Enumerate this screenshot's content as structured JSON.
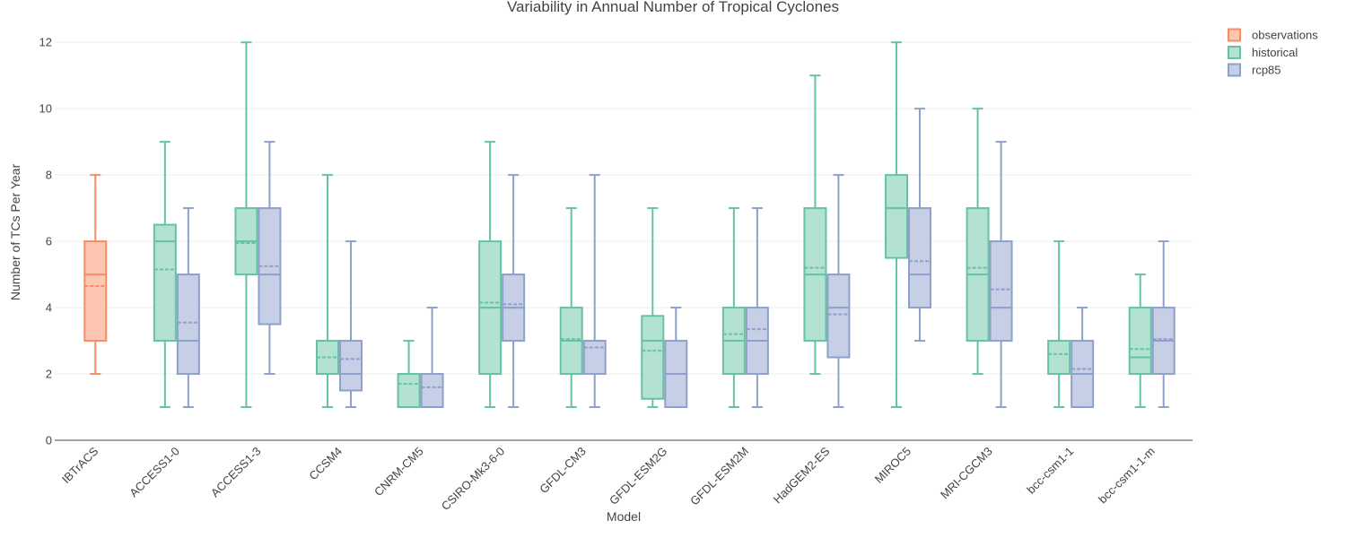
{
  "chart_data": {
    "type": "box",
    "title": "Variability in Annual Number of Tropical Cyclones",
    "xlabel": "Model",
    "ylabel": "Number of TCs Per Year",
    "ylim": [
      0,
      12.6
    ],
    "yticks": [
      0,
      2,
      4,
      6,
      8,
      10,
      12
    ],
    "grid": true,
    "legend_position": "top-right",
    "categories": [
      "IBTrACS",
      "ACCESS1-0",
      "ACCESS1-3",
      "CCSM4",
      "CNRM-CM5",
      "CSIRO-Mk3-6-0",
      "GFDL-CM3",
      "GFDL-ESM2G",
      "GFDL-ESM2M",
      "HadGEM2-ES",
      "MIROC5",
      "MRI-CGCM3",
      "bcc-csm1-1",
      "bcc-csm1-1-m"
    ],
    "series": [
      {
        "name": "observations",
        "stroke": "#f58d68",
        "fill": "#fcc6b1",
        "boxes": [
          {
            "category": "IBTrACS",
            "min": 2,
            "q1": 3,
            "median": 5,
            "q3": 6,
            "max": 8,
            "mean": 4.65
          }
        ]
      },
      {
        "name": "historical",
        "stroke": "#66c2a5",
        "fill": "#b3e1d2",
        "boxes": [
          {
            "category": "ACCESS1-0",
            "min": 1,
            "q1": 3,
            "median": 6,
            "q3": 6.5,
            "max": 9,
            "mean": 5.15
          },
          {
            "category": "ACCESS1-3",
            "min": 1,
            "q1": 5,
            "median": 6,
            "q3": 7,
            "max": 12,
            "mean": 5.95
          },
          {
            "category": "CCSM4",
            "min": 1,
            "q1": 2,
            "median": 2,
            "q3": 3,
            "max": 8,
            "mean": 2.5
          },
          {
            "category": "CNRM-CM5",
            "min": 1,
            "q1": 1,
            "median": 2,
            "q3": 2,
            "max": 3,
            "mean": 1.7
          },
          {
            "category": "CSIRO-Mk3-6-0",
            "min": 1,
            "q1": 2,
            "median": 4,
            "q3": 6,
            "max": 9,
            "mean": 4.15
          },
          {
            "category": "GFDL-CM3",
            "min": 1,
            "q1": 2,
            "median": 3,
            "q3": 4,
            "max": 7,
            "mean": 3.05
          },
          {
            "category": "GFDL-ESM2G",
            "min": 1,
            "q1": 1.25,
            "median": 3,
            "q3": 3.75,
            "max": 7,
            "mean": 2.7
          },
          {
            "category": "GFDL-ESM2M",
            "min": 1,
            "q1": 2,
            "median": 3,
            "q3": 4,
            "max": 7,
            "mean": 3.2
          },
          {
            "category": "HadGEM2-ES",
            "min": 2,
            "q1": 3,
            "median": 5,
            "q3": 7,
            "max": 11,
            "mean": 5.2
          },
          {
            "category": "MIROC5",
            "min": 1,
            "q1": 5.5,
            "median": 7,
            "q3": 8,
            "max": 12,
            "mean": 7.0
          },
          {
            "category": "MRI-CGCM3",
            "min": 2,
            "q1": 3,
            "median": 5,
            "q3": 7,
            "max": 10,
            "mean": 5.2
          },
          {
            "category": "bcc-csm1-1",
            "min": 1,
            "q1": 2,
            "median": 2,
            "q3": 3,
            "max": 6,
            "mean": 2.6
          },
          {
            "category": "bcc-csm1-1-m",
            "min": 1,
            "q1": 2,
            "median": 2.5,
            "q3": 4,
            "max": 5,
            "mean": 2.75
          }
        ]
      },
      {
        "name": "rcp85",
        "stroke": "#8da0cb",
        "fill": "#c6cfe5",
        "boxes": [
          {
            "category": "ACCESS1-0",
            "min": 1,
            "q1": 2,
            "median": 3,
            "q3": 5,
            "max": 7,
            "mean": 3.55
          },
          {
            "category": "ACCESS1-3",
            "min": 2,
            "q1": 3.5,
            "median": 5,
            "q3": 7,
            "max": 9,
            "mean": 5.25
          },
          {
            "category": "CCSM4",
            "min": 1,
            "q1": 1.5,
            "median": 2,
            "q3": 3,
            "max": 6,
            "mean": 2.45
          },
          {
            "category": "CNRM-CM5",
            "min": 1,
            "q1": 1,
            "median": 1,
            "q3": 2,
            "max": 4,
            "mean": 1.6
          },
          {
            "category": "CSIRO-Mk3-6-0",
            "min": 1,
            "q1": 3,
            "median": 4,
            "q3": 5,
            "max": 8,
            "mean": 4.1
          },
          {
            "category": "GFDL-CM3",
            "min": 1,
            "q1": 2,
            "median": 3,
            "q3": 3,
            "max": 8,
            "mean": 2.8
          },
          {
            "category": "GFDL-ESM2G",
            "min": 1,
            "q1": 1,
            "median": 2,
            "q3": 3,
            "max": 4,
            "mean": 2.0
          },
          {
            "category": "GFDL-ESM2M",
            "min": 1,
            "q1": 2,
            "median": 3,
            "q3": 4,
            "max": 7,
            "mean": 3.35
          },
          {
            "category": "HadGEM2-ES",
            "min": 1,
            "q1": 2.5,
            "median": 4,
            "q3": 5,
            "max": 8,
            "mean": 3.8
          },
          {
            "category": "MIROC5",
            "min": 3,
            "q1": 4,
            "median": 5,
            "q3": 7,
            "max": 10,
            "mean": 5.4
          },
          {
            "category": "MRI-CGCM3",
            "min": 1,
            "q1": 3,
            "median": 4,
            "q3": 6,
            "max": 9,
            "mean": 4.55
          },
          {
            "category": "bcc-csm1-1",
            "min": 1,
            "q1": 1,
            "median": 2,
            "q3": 3,
            "max": 4,
            "mean": 2.15
          },
          {
            "category": "bcc-csm1-1-m",
            "min": 1,
            "q1": 2,
            "median": 3,
            "q3": 4,
            "max": 6,
            "mean": 3.05
          }
        ]
      }
    ]
  }
}
